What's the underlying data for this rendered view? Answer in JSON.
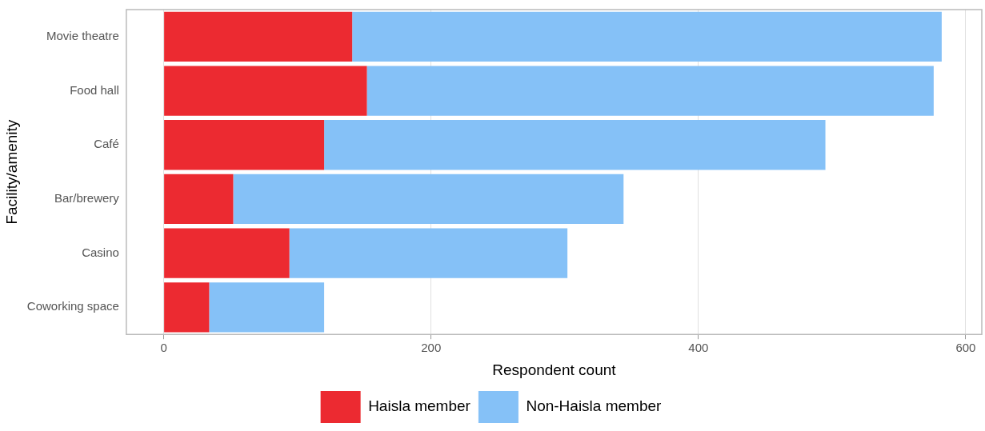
{
  "chart_data": {
    "type": "bar",
    "orientation": "horizontal",
    "stacked": true,
    "xlabel": "Respondent count",
    "ylabel": "Facility/amenity",
    "categories": [
      "Movie theatre",
      "Food hall",
      "Café",
      "Bar/brewery",
      "Casino",
      "Coworking space"
    ],
    "series": [
      {
        "name": "Haisla member",
        "color": "#ec2a31",
        "values": [
          141,
          152,
          120,
          52,
          94,
          34
        ]
      },
      {
        "name": "Non-Haisla member",
        "color": "#85c1f7",
        "values": [
          441,
          424,
          375,
          292,
          208,
          86
        ]
      }
    ],
    "xlim": [
      -28,
      612
    ],
    "xticks": [
      0,
      200,
      400,
      600
    ],
    "grid": "x",
    "legend": "bottom"
  }
}
